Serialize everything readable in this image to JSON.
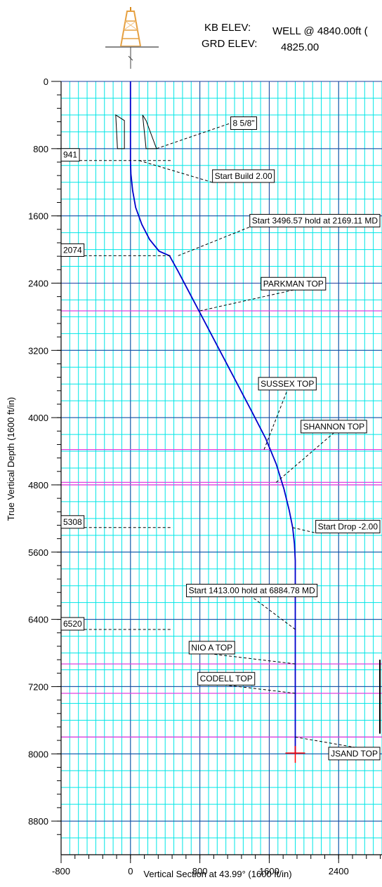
{
  "header": {
    "kb_label": "KB ELEV:",
    "kb_value": "WELL @ 4840.00ft (",
    "grd_label": "GRD ELEV:",
    "grd_value": "4825.00",
    "icon": "derrick-icon"
  },
  "colors": {
    "grid_minor": "#00e6e6",
    "grid_major": "#1f3f9f",
    "well_path": "#0000cc",
    "formation": "#e040e0",
    "marker": "#ff0000"
  },
  "chart_data": {
    "type": "line",
    "title": "",
    "xlabel": "Vertical Section at 43.99° (1600 ft/in)",
    "ylabel": "True Vertical Depth (1600 ft/in)",
    "xlim": [
      -800,
      2900
    ],
    "ylim": [
      0,
      9200
    ],
    "y_inverted": true,
    "grid": true,
    "x_ticks": [
      -800,
      0,
      800,
      1600,
      2400
    ],
    "x_tick_labels": [
      "-800",
      "0",
      "800",
      "1600",
      "2400"
    ],
    "y_ticks": [
      0,
      800,
      1600,
      2400,
      3200,
      4000,
      4800,
      5600,
      6400,
      7200,
      8000,
      8800
    ],
    "y_tick_labels": [
      "0",
      "800",
      "1600",
      "2400",
      "3200",
      "4000",
      "4800",
      "5600",
      "6400",
      "7200",
      "8000",
      "8800"
    ],
    "series": [
      {
        "vs": [
          0,
          0,
          5,
          25,
          60,
          130,
          220,
          330,
          450,
          550,
          800,
          1100,
          1400,
          1560,
          1680,
          1770,
          1830,
          1870,
          1890,
          1900,
          1900,
          1900
        ],
        "tvd": [
          0,
          941,
          1100,
          1300,
          1500,
          1700,
          1880,
          2020,
          2074,
          2260,
          2750,
          3340,
          3930,
          4250,
          4550,
          4850,
          5100,
          5308,
          5500,
          5700,
          6520,
          8000
        ]
      }
    ],
    "formations": [
      {
        "name": "PARKMAN TOP",
        "tvd": 2730,
        "point_vs": 800,
        "label_vs": 1530,
        "label_tvd": 2440
      },
      {
        "name": "SUSSEX TOP",
        "tvd": 4380,
        "point_vs": 1540,
        "label_vs": 1500,
        "label_tvd": 3630
      },
      {
        "name": "SHANNON TOP",
        "tvd": 4770,
        "point_vs": 1680,
        "label_vs": 1990,
        "label_tvd": 4140
      },
      {
        "name": "",
        "tvd": 4800,
        "point_vs": null,
        "label_vs": null,
        "label_tvd": null
      },
      {
        "name": "NIO A TOP",
        "tvd": 6930,
        "point_vs": 1900,
        "label_vs": 700,
        "label_tvd": 6770
      },
      {
        "name": "CODELL TOP",
        "tvd": 7280,
        "point_vs": 1900,
        "label_vs": 800,
        "label_tvd": 7140
      },
      {
        "name": "JSAND TOP",
        "tvd": 7800,
        "point_vs": 1900,
        "label_vs": 2310,
        "label_tvd": 8030
      }
    ],
    "casing": {
      "label": "8 5/8\"",
      "tvd": 800,
      "label_vs": 1180,
      "label_tvd": 530
    },
    "depth_markers": [
      {
        "label": "941",
        "tvd": 941
      },
      {
        "label": "2074",
        "tvd": 2074
      },
      {
        "label": "5308",
        "tvd": 5308
      },
      {
        "label": "6520",
        "tvd": 6520
      }
    ],
    "annotations": [
      {
        "text": "Start Build 2.00",
        "point_vs": 100,
        "point_tvd": 941,
        "label_vs": 970,
        "label_tvd": 1160
      },
      {
        "text": "Start 3496.57 hold at 2169.11 MD",
        "point_vs": 550,
        "point_tvd": 2074,
        "label_vs": 1620,
        "label_tvd": 1690
      },
      {
        "text": "Start Drop -2.00",
        "point_vs": 1870,
        "point_tvd": 5308,
        "label_vs": 2250,
        "label_tvd": 5330
      },
      {
        "text": "Start 1413.00 hold at 6884.78 MD",
        "point_vs": 1900,
        "point_tvd": 6520,
        "label_vs": 670,
        "label_tvd": 6090
      }
    ],
    "target": {
      "vs": 1900,
      "tvd": 7990
    }
  }
}
